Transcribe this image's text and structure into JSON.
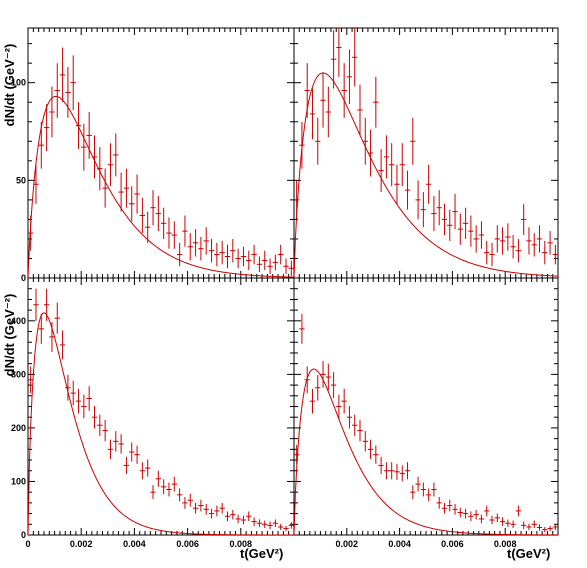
{
  "colors": {
    "data": "#cc0000",
    "fit": "#cc0000",
    "frame": "#000000",
    "background": "#ffffff"
  },
  "chart_data": [
    {
      "type": "scatter",
      "panel": "top-left",
      "xlim": [
        0,
        0.01
      ],
      "ylim": [
        0,
        128
      ],
      "xticks": [],
      "yticks": [
        0,
        50,
        100
      ],
      "xlabel": "",
      "ylabel": "dN/dt (GeV⁻²)",
      "grid": false,
      "fit": {
        "peak_x": 0.00105,
        "peak_y": 93,
        "decay": 0.0023,
        "power": 0.85
      },
      "points": [
        {
          "x": 0.0001,
          "y": 23,
          "ey": 9
        },
        {
          "x": 0.0003,
          "y": 48,
          "ey": 10
        },
        {
          "x": 0.0005,
          "y": 68,
          "ey": 12
        },
        {
          "x": 0.0007,
          "y": 77,
          "ey": 12
        },
        {
          "x": 0.0009,
          "y": 85,
          "ey": 13
        },
        {
          "x": 0.0011,
          "y": 96,
          "ey": 14
        },
        {
          "x": 0.0013,
          "y": 104,
          "ey": 14
        },
        {
          "x": 0.0015,
          "y": 95,
          "ey": 13
        },
        {
          "x": 0.0017,
          "y": 100,
          "ey": 14
        },
        {
          "x": 0.0019,
          "y": 78,
          "ey": 12
        },
        {
          "x": 0.0021,
          "y": 67,
          "ey": 12
        },
        {
          "x": 0.0023,
          "y": 73,
          "ey": 12
        },
        {
          "x": 0.0025,
          "y": 62,
          "ey": 11
        },
        {
          "x": 0.0027,
          "y": 56,
          "ey": 11
        },
        {
          "x": 0.0029,
          "y": 46,
          "ey": 10
        },
        {
          "x": 0.0031,
          "y": 58,
          "ey": 11
        },
        {
          "x": 0.0033,
          "y": 63,
          "ey": 11
        },
        {
          "x": 0.0035,
          "y": 44,
          "ey": 10
        },
        {
          "x": 0.0037,
          "y": 46,
          "ey": 10
        },
        {
          "x": 0.0039,
          "y": 38,
          "ey": 9
        },
        {
          "x": 0.0041,
          "y": 43,
          "ey": 10
        },
        {
          "x": 0.0043,
          "y": 32,
          "ey": 9
        },
        {
          "x": 0.0045,
          "y": 26,
          "ey": 8
        },
        {
          "x": 0.0047,
          "y": 36,
          "ey": 9
        },
        {
          "x": 0.0049,
          "y": 33,
          "ey": 9
        },
        {
          "x": 0.0051,
          "y": 28,
          "ey": 8
        },
        {
          "x": 0.0053,
          "y": 23,
          "ey": 8
        },
        {
          "x": 0.0055,
          "y": 22,
          "ey": 7
        },
        {
          "x": 0.0057,
          "y": 12,
          "ey": 6
        },
        {
          "x": 0.0059,
          "y": 24,
          "ey": 8
        },
        {
          "x": 0.0061,
          "y": 16,
          "ey": 7
        },
        {
          "x": 0.0063,
          "y": 18,
          "ey": 7
        },
        {
          "x": 0.0065,
          "y": 15,
          "ey": 6
        },
        {
          "x": 0.0067,
          "y": 19,
          "ey": 7
        },
        {
          "x": 0.0069,
          "y": 14,
          "ey": 6
        },
        {
          "x": 0.0071,
          "y": 12,
          "ey": 6
        },
        {
          "x": 0.0073,
          "y": 13,
          "ey": 6
        },
        {
          "x": 0.0075,
          "y": 11,
          "ey": 6
        },
        {
          "x": 0.0077,
          "y": 14,
          "ey": 6
        },
        {
          "x": 0.0079,
          "y": 10,
          "ey": 5
        },
        {
          "x": 0.0081,
          "y": 11,
          "ey": 5
        },
        {
          "x": 0.0083,
          "y": 9,
          "ey": 5
        },
        {
          "x": 0.0085,
          "y": 12,
          "ey": 5
        },
        {
          "x": 0.0087,
          "y": 7,
          "ey": 4
        },
        {
          "x": 0.0089,
          "y": 9,
          "ey": 5
        },
        {
          "x": 0.0091,
          "y": 6,
          "ey": 4
        },
        {
          "x": 0.0093,
          "y": 8,
          "ey": 4
        },
        {
          "x": 0.0095,
          "y": 12,
          "ey": 5
        },
        {
          "x": 0.0097,
          "y": 6,
          "ey": 4
        },
        {
          "x": 0.0099,
          "y": 5,
          "ey": 4
        }
      ]
    },
    {
      "type": "scatter",
      "panel": "top-right",
      "xlim": [
        0,
        0.01
      ],
      "ylim": [
        0,
        128
      ],
      "xticks": [],
      "yticks": [],
      "xlabel": "",
      "ylabel": "",
      "grid": false,
      "fit": {
        "peak_x": 0.0011,
        "peak_y": 105,
        "decay": 0.0021,
        "power": 0.8
      },
      "points": [
        {
          "x": 0.0001,
          "y": 40,
          "ey": 10
        },
        {
          "x": 0.0003,
          "y": 68,
          "ey": 12
        },
        {
          "x": 0.0005,
          "y": 96,
          "ey": 14
        },
        {
          "x": 0.0007,
          "y": 84,
          "ey": 13
        },
        {
          "x": 0.0009,
          "y": 70,
          "ey": 12
        },
        {
          "x": 0.0011,
          "y": 91,
          "ey": 14
        },
        {
          "x": 0.0013,
          "y": 85,
          "ey": 13
        },
        {
          "x": 0.0015,
          "y": 112,
          "ey": 15
        },
        {
          "x": 0.0017,
          "y": 118,
          "ey": 15
        },
        {
          "x": 0.0019,
          "y": 96,
          "ey": 14
        },
        {
          "x": 0.0021,
          "y": 103,
          "ey": 14
        },
        {
          "x": 0.0023,
          "y": 113,
          "ey": 15
        },
        {
          "x": 0.0025,
          "y": 86,
          "ey": 13
        },
        {
          "x": 0.0027,
          "y": 70,
          "ey": 12
        },
        {
          "x": 0.0029,
          "y": 64,
          "ey": 12
        },
        {
          "x": 0.0031,
          "y": 90,
          "ey": 13
        },
        {
          "x": 0.0033,
          "y": 55,
          "ey": 11
        },
        {
          "x": 0.0035,
          "y": 62,
          "ey": 11
        },
        {
          "x": 0.0037,
          "y": 58,
          "ey": 11
        },
        {
          "x": 0.0039,
          "y": 48,
          "ey": 10
        },
        {
          "x": 0.0041,
          "y": 58,
          "ey": 11
        },
        {
          "x": 0.0043,
          "y": 45,
          "ey": 10
        },
        {
          "x": 0.0045,
          "y": 70,
          "ey": 12
        },
        {
          "x": 0.0047,
          "y": 40,
          "ey": 10
        },
        {
          "x": 0.0049,
          "y": 35,
          "ey": 9
        },
        {
          "x": 0.0051,
          "y": 48,
          "ey": 10
        },
        {
          "x": 0.0053,
          "y": 33,
          "ey": 9
        },
        {
          "x": 0.0055,
          "y": 36,
          "ey": 9
        },
        {
          "x": 0.0057,
          "y": 30,
          "ey": 8
        },
        {
          "x": 0.0059,
          "y": 27,
          "ey": 8
        },
        {
          "x": 0.0061,
          "y": 34,
          "ey": 9
        },
        {
          "x": 0.0063,
          "y": 25,
          "ey": 8
        },
        {
          "x": 0.0065,
          "y": 28,
          "ey": 8
        },
        {
          "x": 0.0067,
          "y": 24,
          "ey": 8
        },
        {
          "x": 0.0069,
          "y": 20,
          "ey": 7
        },
        {
          "x": 0.0071,
          "y": 22,
          "ey": 7
        },
        {
          "x": 0.0073,
          "y": 13,
          "ey": 6
        },
        {
          "x": 0.0075,
          "y": 12,
          "ey": 6
        },
        {
          "x": 0.0077,
          "y": 20,
          "ey": 7
        },
        {
          "x": 0.0079,
          "y": 19,
          "ey": 7
        },
        {
          "x": 0.0081,
          "y": 21,
          "ey": 7
        },
        {
          "x": 0.0083,
          "y": 16,
          "ey": 6
        },
        {
          "x": 0.0085,
          "y": 14,
          "ey": 6
        },
        {
          "x": 0.0087,
          "y": 30,
          "ey": 8
        },
        {
          "x": 0.0089,
          "y": 19,
          "ey": 7
        },
        {
          "x": 0.0091,
          "y": 17,
          "ey": 6
        },
        {
          "x": 0.0093,
          "y": 20,
          "ey": 7
        },
        {
          "x": 0.0095,
          "y": 13,
          "ey": 6
        },
        {
          "x": 0.0097,
          "y": 18,
          "ey": 6
        },
        {
          "x": 0.0099,
          "y": 12,
          "ey": 5
        }
      ]
    },
    {
      "type": "scatter",
      "panel": "bottom-left",
      "xlim": [
        0,
        0.01
      ],
      "ylim": [
        0,
        480
      ],
      "xticks": [
        0,
        0.002,
        0.004,
        0.006,
        0.008
      ],
      "xtick_labels": [
        "0",
        "0.002",
        "0.004",
        "0.006",
        "0.008"
      ],
      "yticks": [
        0,
        100,
        200,
        300,
        400
      ],
      "xlabel": "t(GeV²)",
      "ylabel": "dN/dt (GeV⁻²)",
      "grid": false,
      "fit": {
        "peak_x": 0.0006,
        "peak_y": 415,
        "decay": 0.0021,
        "power": 0.75
      },
      "points": [
        {
          "x": 0.0001,
          "y": 290,
          "ey": 25
        },
        {
          "x": 0.0003,
          "y": 430,
          "ey": 30
        },
        {
          "x": 0.0005,
          "y": 385,
          "ey": 28
        },
        {
          "x": 0.0007,
          "y": 430,
          "ey": 30
        },
        {
          "x": 0.0009,
          "y": 370,
          "ey": 28
        },
        {
          "x": 0.0011,
          "y": 405,
          "ey": 29
        },
        {
          "x": 0.0013,
          "y": 355,
          "ey": 27
        },
        {
          "x": 0.0015,
          "y": 275,
          "ey": 24
        },
        {
          "x": 0.0017,
          "y": 265,
          "ey": 23
        },
        {
          "x": 0.0019,
          "y": 250,
          "ey": 23
        },
        {
          "x": 0.0021,
          "y": 240,
          "ey": 22
        },
        {
          "x": 0.0023,
          "y": 255,
          "ey": 23
        },
        {
          "x": 0.0025,
          "y": 220,
          "ey": 21
        },
        {
          "x": 0.0027,
          "y": 205,
          "ey": 20
        },
        {
          "x": 0.0029,
          "y": 195,
          "ey": 20
        },
        {
          "x": 0.0031,
          "y": 160,
          "ey": 18
        },
        {
          "x": 0.0033,
          "y": 175,
          "ey": 19
        },
        {
          "x": 0.0035,
          "y": 170,
          "ey": 18
        },
        {
          "x": 0.0037,
          "y": 130,
          "ey": 16
        },
        {
          "x": 0.0039,
          "y": 155,
          "ey": 18
        },
        {
          "x": 0.0041,
          "y": 150,
          "ey": 17
        },
        {
          "x": 0.0043,
          "y": 120,
          "ey": 16
        },
        {
          "x": 0.0045,
          "y": 125,
          "ey": 16
        },
        {
          "x": 0.0047,
          "y": 80,
          "ey": 13
        },
        {
          "x": 0.0049,
          "y": 105,
          "ey": 15
        },
        {
          "x": 0.0051,
          "y": 90,
          "ey": 14
        },
        {
          "x": 0.0053,
          "y": 85,
          "ey": 13
        },
        {
          "x": 0.0055,
          "y": 95,
          "ey": 14
        },
        {
          "x": 0.0057,
          "y": 75,
          "ey": 12
        },
        {
          "x": 0.0059,
          "y": 60,
          "ey": 11
        },
        {
          "x": 0.0061,
          "y": 65,
          "ey": 12
        },
        {
          "x": 0.0063,
          "y": 50,
          "ey": 10
        },
        {
          "x": 0.0065,
          "y": 55,
          "ey": 11
        },
        {
          "x": 0.0067,
          "y": 48,
          "ey": 10
        },
        {
          "x": 0.0069,
          "y": 40,
          "ey": 9
        },
        {
          "x": 0.0071,
          "y": 45,
          "ey": 10
        },
        {
          "x": 0.0073,
          "y": 50,
          "ey": 10
        },
        {
          "x": 0.0075,
          "y": 35,
          "ey": 9
        },
        {
          "x": 0.0077,
          "y": 38,
          "ey": 9
        },
        {
          "x": 0.0079,
          "y": 30,
          "ey": 8
        },
        {
          "x": 0.0081,
          "y": 28,
          "ey": 8
        },
        {
          "x": 0.0083,
          "y": 35,
          "ey": 9
        },
        {
          "x": 0.0085,
          "y": 25,
          "ey": 8
        },
        {
          "x": 0.0087,
          "y": 22,
          "ey": 7
        },
        {
          "x": 0.0089,
          "y": 20,
          "ey": 7
        },
        {
          "x": 0.0091,
          "y": 18,
          "ey": 7
        },
        {
          "x": 0.0093,
          "y": 22,
          "ey": 7
        },
        {
          "x": 0.0095,
          "y": 15,
          "ey": 6
        },
        {
          "x": 0.0097,
          "y": 12,
          "ey": 5
        },
        {
          "x": 0.0099,
          "y": 18,
          "ey": 6
        }
      ]
    },
    {
      "type": "scatter",
      "panel": "bottom-right",
      "xlim": [
        0,
        0.01
      ],
      "ylim": [
        0,
        480
      ],
      "xticks": [
        0.002,
        0.004,
        0.006,
        0.008
      ],
      "xtick_labels": [
        "0.002",
        "0.004",
        "0.006",
        "0.008"
      ],
      "yticks": [],
      "xlabel": "t(GeV²)",
      "ylabel": "",
      "grid": false,
      "fit": {
        "peak_x": 0.00075,
        "peak_y": 310,
        "decay": 0.0021,
        "power": 0.8
      },
      "points": [
        {
          "x": 0.0001,
          "y": 150,
          "ey": 18
        },
        {
          "x": 0.0003,
          "y": 385,
          "ey": 28
        },
        {
          "x": 0.0005,
          "y": 290,
          "ey": 25
        },
        {
          "x": 0.0007,
          "y": 250,
          "ey": 23
        },
        {
          "x": 0.0009,
          "y": 275,
          "ey": 24
        },
        {
          "x": 0.0011,
          "y": 300,
          "ey": 25
        },
        {
          "x": 0.0013,
          "y": 295,
          "ey": 25
        },
        {
          "x": 0.0015,
          "y": 280,
          "ey": 24
        },
        {
          "x": 0.0017,
          "y": 240,
          "ey": 22
        },
        {
          "x": 0.0019,
          "y": 250,
          "ey": 23
        },
        {
          "x": 0.0021,
          "y": 220,
          "ey": 21
        },
        {
          "x": 0.0023,
          "y": 205,
          "ey": 20
        },
        {
          "x": 0.0025,
          "y": 195,
          "ey": 20
        },
        {
          "x": 0.0027,
          "y": 175,
          "ey": 19
        },
        {
          "x": 0.0029,
          "y": 160,
          "ey": 18
        },
        {
          "x": 0.0031,
          "y": 150,
          "ey": 17
        },
        {
          "x": 0.0033,
          "y": 130,
          "ey": 16
        },
        {
          "x": 0.0035,
          "y": 120,
          "ey": 16
        },
        {
          "x": 0.0037,
          "y": 120,
          "ey": 16
        },
        {
          "x": 0.0039,
          "y": 118,
          "ey": 15
        },
        {
          "x": 0.0041,
          "y": 115,
          "ey": 15
        },
        {
          "x": 0.0043,
          "y": 120,
          "ey": 16
        },
        {
          "x": 0.0045,
          "y": 80,
          "ey": 13
        },
        {
          "x": 0.0047,
          "y": 95,
          "ey": 14
        },
        {
          "x": 0.0049,
          "y": 85,
          "ey": 13
        },
        {
          "x": 0.0051,
          "y": 75,
          "ey": 12
        },
        {
          "x": 0.0053,
          "y": 85,
          "ey": 13
        },
        {
          "x": 0.0055,
          "y": 60,
          "ey": 11
        },
        {
          "x": 0.0057,
          "y": 50,
          "ey": 10
        },
        {
          "x": 0.0059,
          "y": 55,
          "ey": 11
        },
        {
          "x": 0.0061,
          "y": 48,
          "ey": 10
        },
        {
          "x": 0.0063,
          "y": 42,
          "ey": 9
        },
        {
          "x": 0.0065,
          "y": 40,
          "ey": 9
        },
        {
          "x": 0.0067,
          "y": 35,
          "ey": 9
        },
        {
          "x": 0.0069,
          "y": 38,
          "ey": 9
        },
        {
          "x": 0.0071,
          "y": 30,
          "ey": 8
        },
        {
          "x": 0.0073,
          "y": 45,
          "ey": 10
        },
        {
          "x": 0.0075,
          "y": 28,
          "ey": 8
        },
        {
          "x": 0.0077,
          "y": 32,
          "ey": 8
        },
        {
          "x": 0.0079,
          "y": 25,
          "ey": 8
        },
        {
          "x": 0.0081,
          "y": 22,
          "ey": 7
        },
        {
          "x": 0.0083,
          "y": 20,
          "ey": 7
        },
        {
          "x": 0.0085,
          "y": 45,
          "ey": 10
        },
        {
          "x": 0.0087,
          "y": 18,
          "ey": 7
        },
        {
          "x": 0.0089,
          "y": 15,
          "ey": 6
        },
        {
          "x": 0.0091,
          "y": 20,
          "ey": 7
        },
        {
          "x": 0.0093,
          "y": 14,
          "ey": 6
        },
        {
          "x": 0.0095,
          "y": 10,
          "ey": 5
        },
        {
          "x": 0.0097,
          "y": 12,
          "ey": 5
        },
        {
          "x": 0.0099,
          "y": 15,
          "ey": 6
        }
      ]
    }
  ]
}
